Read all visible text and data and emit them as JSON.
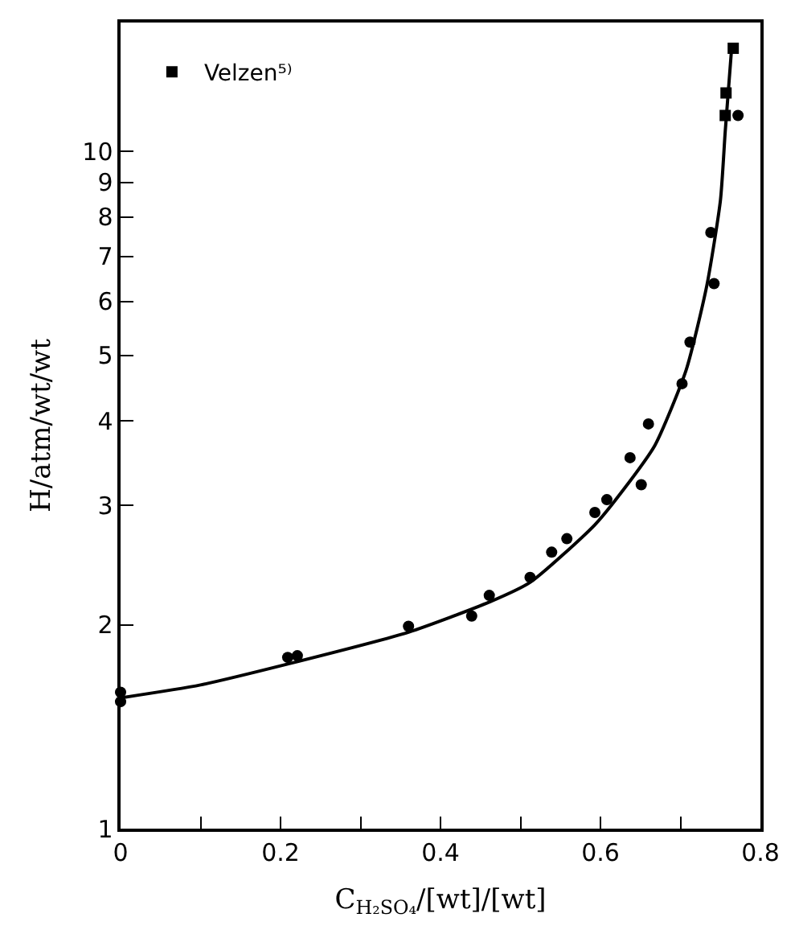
{
  "chart_data": {
    "type": "scatter",
    "xlabel": "C$_{H₂SO₄}$/[wt]/[wt]",
    "ylabel": "H/atm/wt/wt",
    "log": "y",
    "xlim": [
      0,
      0.8
    ],
    "xticks": [
      0,
      {
        "value": 0.1,
        "label": null
      },
      0.2,
      {
        "value": 0.3,
        "label": null
      },
      0.4,
      {
        "value": 0.5,
        "label": null
      },
      0.6,
      {
        "value": 0.7,
        "label": null
      },
      0.8
    ],
    "ylim": [
      1,
      15.5
    ],
    "yticks": [
      1,
      2,
      3,
      4,
      5,
      6,
      7,
      8,
      9,
      10
    ],
    "grid": false,
    "legend": "top left",
    "series": [
      {
        "marker": "circle",
        "color": "#000000",
        "x": [
          0,
          0,
          0.209,
          0.221,
          0.36,
          0.439,
          0.461,
          0.512,
          0.539,
          0.558,
          0.593,
          0.608,
          0.637,
          0.651,
          0.66,
          0.702,
          0.712,
          0.738,
          0.742,
          0.772
        ],
        "values": [
          1.59,
          1.54,
          1.79,
          1.8,
          1.99,
          2.06,
          2.21,
          2.35,
          2.56,
          2.68,
          2.93,
          3.06,
          3.53,
          3.22,
          3.96,
          4.54,
          5.23,
          7.59,
          6.38,
          11.3
        ]
      },
      {
        "marker": "square",
        "name": "Velzen⁵⁾",
        "color": "#000000",
        "x": [
          0.756,
          0.757,
          0.766
        ],
        "values": [
          11.3,
          12.2,
          14.2
        ]
      },
      {
        "type": "line",
        "marker": "none",
        "line_style": "solid",
        "color": "#000000",
        "x": [
          0,
          0.1,
          0.209,
          0.36,
          0.461,
          0.512,
          0.593,
          0.63,
          0.668,
          0.707,
          0.733,
          0.75,
          0.756,
          0.764
        ],
        "values": [
          1.56,
          1.63,
          1.75,
          1.95,
          2.16,
          2.31,
          2.81,
          3.18,
          3.68,
          4.75,
          6.34,
          8.47,
          10.7,
          14.2
        ]
      }
    ]
  }
}
